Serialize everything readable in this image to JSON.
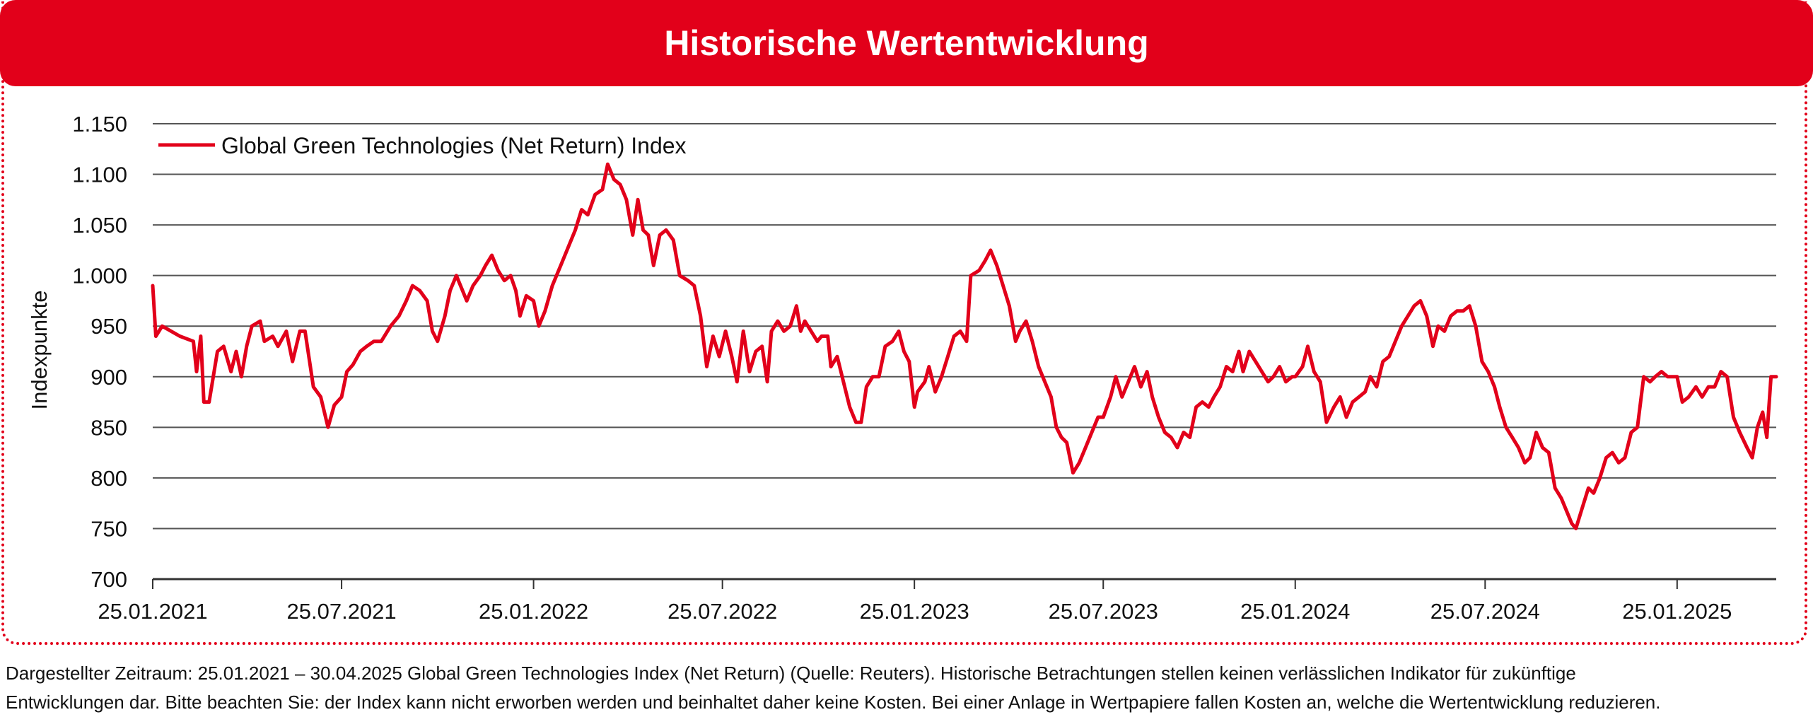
{
  "header": {
    "title": "Historische Wertentwicklung"
  },
  "footnote": {
    "line1": "Dargestellter Zeitraum: 25.01.2021 – 30.04.2025 Global Green Technologies Index (Net Return) (Quelle: Reuters). Historische Betrachtungen stellen keinen verlässlichen Indikator für zukünftige",
    "line2": "Entwicklungen dar. Bitte beachten Sie: der Index kann nicht erworben werden und beinhaltet daher keine Kosten. Bei einer Anlage in Wertpapiere fallen Kosten an, welche die Wertentwicklung reduzieren."
  },
  "chart_data": {
    "type": "line",
    "ylabel": "Indexpunkte",
    "xlabel": "",
    "ylim": [
      700,
      1150
    ],
    "xlim": [
      "2021-01-25",
      "2025-04-30"
    ],
    "yticks": [
      700,
      750,
      800,
      850,
      900,
      950,
      1000,
      1050,
      1100,
      1150
    ],
    "ytick_labels": [
      "700",
      "750",
      "800",
      "850",
      "900",
      "950",
      "1.000",
      "1.050",
      "1.100",
      "1.150"
    ],
    "xticks": [
      "2021-01-25",
      "2021-07-25",
      "2022-01-25",
      "2022-07-25",
      "2023-01-25",
      "2023-07-25",
      "2024-01-25",
      "2024-07-25",
      "2025-01-25"
    ],
    "xtick_labels": [
      "25.01.2021",
      "25.07.2021",
      "25.01.2022",
      "25.07.2022",
      "25.01.2023",
      "25.07.2023",
      "25.01.2024",
      "25.07.2024",
      "25.01.2025"
    ],
    "grid": "horizontal",
    "legend_position": "top-left",
    "colors": {
      "series": "#e2001a",
      "grid": "#555555"
    },
    "series": [
      {
        "name": "Global Green Technologies (Net Return) Index",
        "points": [
          [
            "2021-01-25",
            990
          ],
          [
            "2021-01-28",
            940
          ],
          [
            "2021-02-03",
            950
          ],
          [
            "2021-02-20",
            940
          ],
          [
            "2021-03-05",
            935
          ],
          [
            "2021-03-08",
            905
          ],
          [
            "2021-03-12",
            940
          ],
          [
            "2021-03-15",
            875
          ],
          [
            "2021-03-20",
            875
          ],
          [
            "2021-03-28",
            925
          ],
          [
            "2021-04-03",
            930
          ],
          [
            "2021-04-10",
            905
          ],
          [
            "2021-04-15",
            925
          ],
          [
            "2021-04-20",
            900
          ],
          [
            "2021-04-25",
            930
          ],
          [
            "2021-04-30",
            950
          ],
          [
            "2021-05-08",
            955
          ],
          [
            "2021-05-12",
            935
          ],
          [
            "2021-05-20",
            940
          ],
          [
            "2021-05-25",
            930
          ],
          [
            "2021-06-02",
            945
          ],
          [
            "2021-06-08",
            915
          ],
          [
            "2021-06-15",
            945
          ],
          [
            "2021-06-20",
            945
          ],
          [
            "2021-06-28",
            890
          ],
          [
            "2021-07-05",
            880
          ],
          [
            "2021-07-12",
            850
          ],
          [
            "2021-07-18",
            872
          ],
          [
            "2021-07-25",
            880
          ],
          [
            "2021-07-30",
            905
          ],
          [
            "2021-08-05",
            912
          ],
          [
            "2021-08-12",
            925
          ],
          [
            "2021-08-18",
            930
          ],
          [
            "2021-08-25",
            935
          ],
          [
            "2021-09-01",
            935
          ],
          [
            "2021-09-10",
            950
          ],
          [
            "2021-09-18",
            960
          ],
          [
            "2021-09-25",
            975
          ],
          [
            "2021-10-01",
            990
          ],
          [
            "2021-10-08",
            985
          ],
          [
            "2021-10-15",
            975
          ],
          [
            "2021-10-20",
            945
          ],
          [
            "2021-10-25",
            935
          ],
          [
            "2021-11-01",
            960
          ],
          [
            "2021-11-06",
            985
          ],
          [
            "2021-11-12",
            1000
          ],
          [
            "2021-11-18",
            985
          ],
          [
            "2021-11-22",
            975
          ],
          [
            "2021-11-28",
            990
          ],
          [
            "2021-12-05",
            1000
          ],
          [
            "2021-12-10",
            1010
          ],
          [
            "2021-12-16",
            1020
          ],
          [
            "2021-12-22",
            1005
          ],
          [
            "2021-12-28",
            995
          ],
          [
            "2022-01-03",
            1000
          ],
          [
            "2022-01-08",
            985
          ],
          [
            "2022-01-12",
            960
          ],
          [
            "2022-01-18",
            980
          ],
          [
            "2022-01-25",
            975
          ],
          [
            "2022-01-30",
            950
          ],
          [
            "2022-02-05",
            965
          ],
          [
            "2022-02-12",
            990
          ],
          [
            "2022-02-20",
            1010
          ],
          [
            "2022-02-28",
            1030
          ],
          [
            "2022-03-06",
            1045
          ],
          [
            "2022-03-12",
            1065
          ],
          [
            "2022-03-18",
            1060
          ],
          [
            "2022-03-25",
            1080
          ],
          [
            "2022-04-01",
            1085
          ],
          [
            "2022-04-06",
            1110
          ],
          [
            "2022-04-12",
            1095
          ],
          [
            "2022-04-18",
            1090
          ],
          [
            "2022-04-24",
            1075
          ],
          [
            "2022-04-30",
            1040
          ],
          [
            "2022-05-05",
            1075
          ],
          [
            "2022-05-10",
            1045
          ],
          [
            "2022-05-15",
            1040
          ],
          [
            "2022-05-20",
            1010
          ],
          [
            "2022-05-26",
            1040
          ],
          [
            "2022-06-01",
            1045
          ],
          [
            "2022-06-08",
            1035
          ],
          [
            "2022-06-14",
            1000
          ],
          [
            "2022-06-22",
            995
          ],
          [
            "2022-06-28",
            990
          ],
          [
            "2022-07-04",
            960
          ],
          [
            "2022-07-10",
            910
          ],
          [
            "2022-07-16",
            940
          ],
          [
            "2022-07-22",
            920
          ],
          [
            "2022-07-28",
            945
          ],
          [
            "2022-08-03",
            920
          ],
          [
            "2022-08-08",
            895
          ],
          [
            "2022-08-14",
            945
          ],
          [
            "2022-08-20",
            905
          ],
          [
            "2022-08-26",
            925
          ],
          [
            "2022-09-01",
            930
          ],
          [
            "2022-09-06",
            895
          ],
          [
            "2022-09-10",
            945
          ],
          [
            "2022-09-16",
            955
          ],
          [
            "2022-09-22",
            945
          ],
          [
            "2022-09-28",
            950
          ],
          [
            "2022-10-04",
            970
          ],
          [
            "2022-10-08",
            945
          ],
          [
            "2022-10-12",
            955
          ],
          [
            "2022-10-18",
            945
          ],
          [
            "2022-10-24",
            935
          ],
          [
            "2022-10-28",
            940
          ],
          [
            "2022-11-03",
            940
          ],
          [
            "2022-11-06",
            910
          ],
          [
            "2022-11-12",
            920
          ],
          [
            "2022-11-18",
            895
          ],
          [
            "2022-11-24",
            870
          ],
          [
            "2022-11-30",
            855
          ],
          [
            "2022-12-05",
            855
          ],
          [
            "2022-12-10",
            890
          ],
          [
            "2022-12-16",
            900
          ],
          [
            "2022-12-22",
            900
          ],
          [
            "2022-12-28",
            930
          ],
          [
            "2023-01-04",
            935
          ],
          [
            "2023-01-10",
            945
          ],
          [
            "2023-01-15",
            925
          ],
          [
            "2023-01-20",
            915
          ],
          [
            "2023-01-25",
            870
          ],
          [
            "2023-01-28",
            885
          ],
          [
            "2023-02-04",
            895
          ],
          [
            "2023-02-08",
            910
          ],
          [
            "2023-02-14",
            885
          ],
          [
            "2023-02-20",
            900
          ],
          [
            "2023-02-26",
            920
          ],
          [
            "2023-03-04",
            940
          ],
          [
            "2023-03-10",
            945
          ],
          [
            "2023-03-16",
            935
          ],
          [
            "2023-03-20",
            1000
          ],
          [
            "2023-03-28",
            1005
          ],
          [
            "2023-04-03",
            1015
          ],
          [
            "2023-04-08",
            1025
          ],
          [
            "2023-04-14",
            1010
          ],
          [
            "2023-04-20",
            990
          ],
          [
            "2023-04-26",
            970
          ],
          [
            "2023-05-02",
            935
          ],
          [
            "2023-05-06",
            945
          ],
          [
            "2023-05-12",
            955
          ],
          [
            "2023-05-18",
            935
          ],
          [
            "2023-05-24",
            910
          ],
          [
            "2023-05-30",
            895
          ],
          [
            "2023-06-05",
            880
          ],
          [
            "2023-06-10",
            850
          ],
          [
            "2023-06-15",
            840
          ],
          [
            "2023-06-20",
            835
          ],
          [
            "2023-06-26",
            805
          ],
          [
            "2023-07-02",
            815
          ],
          [
            "2023-07-08",
            830
          ],
          [
            "2023-07-14",
            845
          ],
          [
            "2023-07-20",
            860
          ],
          [
            "2023-07-25",
            860
          ],
          [
            "2023-08-01",
            880
          ],
          [
            "2023-08-06",
            900
          ],
          [
            "2023-08-12",
            880
          ],
          [
            "2023-08-18",
            895
          ],
          [
            "2023-08-24",
            910
          ],
          [
            "2023-08-30",
            890
          ],
          [
            "2023-09-05",
            905
          ],
          [
            "2023-09-10",
            880
          ],
          [
            "2023-09-16",
            860
          ],
          [
            "2023-09-22",
            845
          ],
          [
            "2023-09-28",
            840
          ],
          [
            "2023-10-04",
            830
          ],
          [
            "2023-10-10",
            845
          ],
          [
            "2023-10-16",
            840
          ],
          [
            "2023-10-22",
            870
          ],
          [
            "2023-10-28",
            875
          ],
          [
            "2023-11-03",
            870
          ],
          [
            "2023-11-08",
            880
          ],
          [
            "2023-11-14",
            890
          ],
          [
            "2023-11-20",
            910
          ],
          [
            "2023-11-26",
            905
          ],
          [
            "2023-12-02",
            925
          ],
          [
            "2023-12-06",
            905
          ],
          [
            "2023-12-12",
            925
          ],
          [
            "2023-12-18",
            915
          ],
          [
            "2023-12-24",
            905
          ],
          [
            "2023-12-30",
            895
          ],
          [
            "2024-01-04",
            900
          ],
          [
            "2024-01-10",
            910
          ],
          [
            "2024-01-16",
            895
          ],
          [
            "2024-01-22",
            900
          ],
          [
            "2024-01-25",
            900
          ],
          [
            "2024-02-01",
            910
          ],
          [
            "2024-02-06",
            930
          ],
          [
            "2024-02-12",
            905
          ],
          [
            "2024-02-18",
            895
          ],
          [
            "2024-02-24",
            855
          ],
          [
            "2024-03-02",
            870
          ],
          [
            "2024-03-08",
            880
          ],
          [
            "2024-03-14",
            860
          ],
          [
            "2024-03-20",
            875
          ],
          [
            "2024-03-26",
            880
          ],
          [
            "2024-04-01",
            885
          ],
          [
            "2024-04-06",
            900
          ],
          [
            "2024-04-12",
            890
          ],
          [
            "2024-04-18",
            915
          ],
          [
            "2024-04-24",
            920
          ],
          [
            "2024-04-30",
            935
          ],
          [
            "2024-05-06",
            950
          ],
          [
            "2024-05-12",
            960
          ],
          [
            "2024-05-18",
            970
          ],
          [
            "2024-05-24",
            975
          ],
          [
            "2024-05-30",
            960
          ],
          [
            "2024-06-05",
            930
          ],
          [
            "2024-06-10",
            950
          ],
          [
            "2024-06-16",
            945
          ],
          [
            "2024-06-22",
            960
          ],
          [
            "2024-06-28",
            965
          ],
          [
            "2024-07-04",
            965
          ],
          [
            "2024-07-10",
            970
          ],
          [
            "2024-07-16",
            950
          ],
          [
            "2024-07-22",
            915
          ],
          [
            "2024-07-28",
            905
          ],
          [
            "2024-08-03",
            890
          ],
          [
            "2024-08-08",
            870
          ],
          [
            "2024-08-14",
            850
          ],
          [
            "2024-08-20",
            840
          ],
          [
            "2024-08-26",
            830
          ],
          [
            "2024-09-01",
            815
          ],
          [
            "2024-09-06",
            820
          ],
          [
            "2024-09-12",
            845
          ],
          [
            "2024-09-18",
            830
          ],
          [
            "2024-09-24",
            825
          ],
          [
            "2024-09-30",
            790
          ],
          [
            "2024-10-06",
            780
          ],
          [
            "2024-10-12",
            765
          ],
          [
            "2024-10-16",
            755
          ],
          [
            "2024-10-20",
            750
          ],
          [
            "2024-10-26",
            770
          ],
          [
            "2024-11-01",
            790
          ],
          [
            "2024-11-06",
            785
          ],
          [
            "2024-11-12",
            800
          ],
          [
            "2024-11-18",
            820
          ],
          [
            "2024-11-24",
            825
          ],
          [
            "2024-11-30",
            815
          ],
          [
            "2024-12-06",
            820
          ],
          [
            "2024-12-12",
            845
          ],
          [
            "2024-12-18",
            850
          ],
          [
            "2024-12-24",
            900
          ],
          [
            "2024-12-30",
            895
          ],
          [
            "2025-01-04",
            900
          ],
          [
            "2025-01-10",
            905
          ],
          [
            "2025-01-16",
            900
          ],
          [
            "2025-01-25",
            900
          ],
          [
            "2025-01-30",
            875
          ],
          [
            "2025-02-05",
            880
          ],
          [
            "2025-02-12",
            890
          ],
          [
            "2025-02-18",
            880
          ],
          [
            "2025-02-24",
            890
          ],
          [
            "2025-03-02",
            890
          ],
          [
            "2025-03-08",
            905
          ],
          [
            "2025-03-14",
            900
          ],
          [
            "2025-03-20",
            860
          ],
          [
            "2025-03-26",
            845
          ],
          [
            "2025-04-02",
            830
          ],
          [
            "2025-04-07",
            820
          ],
          [
            "2025-04-12",
            850
          ],
          [
            "2025-04-17",
            865
          ],
          [
            "2025-04-21",
            840
          ],
          [
            "2025-04-25",
            900
          ],
          [
            "2025-04-30",
            900
          ]
        ]
      }
    ]
  }
}
